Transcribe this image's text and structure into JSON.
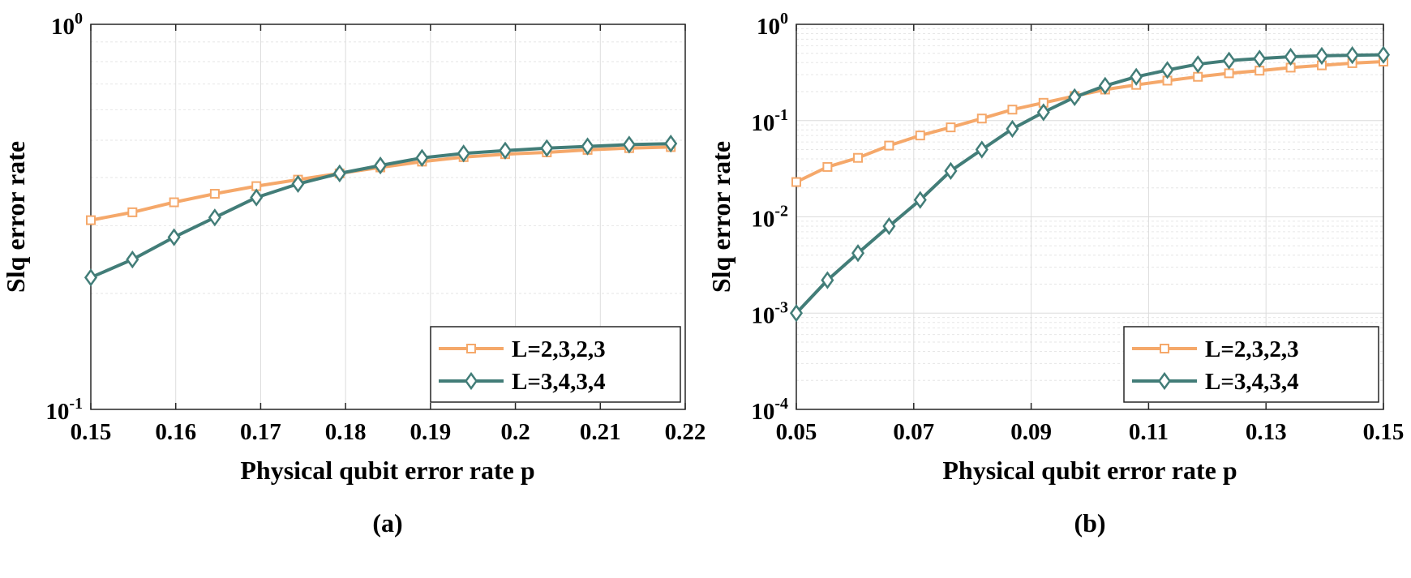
{
  "chart_data": [
    {
      "type": "line",
      "caption": "(a)",
      "xlabel": "Physical qubit error rate p",
      "ylabel": "Slq error rate",
      "xlim": [
        0.15,
        0.22
      ],
      "ylim": [
        0.1,
        1
      ],
      "yscale": "log",
      "x_ticks": [
        0.15,
        0.16,
        0.17,
        0.18,
        0.19,
        0.2,
        0.21,
        0.22
      ],
      "x_tick_labels": [
        "0.15",
        "0.16",
        "0.17",
        "0.18",
        "0.19",
        "0.2",
        "0.21",
        "0.22"
      ],
      "y_ticks": [
        {
          "value": 1,
          "base": "10",
          "exp": "0"
        },
        {
          "value": 0.1,
          "base": "10",
          "exp": "-1"
        }
      ],
      "grid": true,
      "legend_position": "bottom-right",
      "series": [
        {
          "name": "L=2,3,2,3",
          "color": "#f5a86a",
          "marker": "square",
          "x": [
            0.15,
            0.1549,
            0.1598,
            0.1646,
            0.1695,
            0.1744,
            0.1793,
            0.1841,
            0.189,
            0.1939,
            0.1988,
            0.2037,
            0.2085,
            0.2134,
            0.2183
          ],
          "y": [
            0.31,
            0.325,
            0.345,
            0.363,
            0.38,
            0.395,
            0.41,
            0.425,
            0.44,
            0.452,
            0.46,
            0.465,
            0.472,
            0.477,
            0.48
          ]
        },
        {
          "name": "L=3,4,3,4",
          "color": "#427d78",
          "marker": "diamond",
          "x": [
            0.15,
            0.1549,
            0.1598,
            0.1646,
            0.1695,
            0.1744,
            0.1793,
            0.1841,
            0.189,
            0.1939,
            0.1988,
            0.2037,
            0.2085,
            0.2134,
            0.2183
          ],
          "y": [
            0.22,
            0.245,
            0.28,
            0.315,
            0.355,
            0.385,
            0.41,
            0.43,
            0.45,
            0.462,
            0.47,
            0.477,
            0.482,
            0.487,
            0.49
          ]
        }
      ]
    },
    {
      "type": "line",
      "caption": "(b)",
      "xlabel": "Physical qubit error rate p",
      "ylabel": "Slq error rate",
      "xlim": [
        0.05,
        0.15
      ],
      "ylim": [
        0.0001,
        1
      ],
      "yscale": "log",
      "x_ticks": [
        0.05,
        0.07,
        0.09,
        0.11,
        0.13,
        0.15
      ],
      "x_tick_labels": [
        "0.05",
        "0.07",
        "0.09",
        "0.11",
        "0.13",
        "0.15"
      ],
      "y_ticks": [
        {
          "value": 1,
          "base": "10",
          "exp": "0"
        },
        {
          "value": 0.1,
          "base": "10",
          "exp": "-1"
        },
        {
          "value": 0.01,
          "base": "10",
          "exp": "-2"
        },
        {
          "value": 0.001,
          "base": "10",
          "exp": "-3"
        },
        {
          "value": 0.0001,
          "base": "10",
          "exp": "-4"
        }
      ],
      "grid": true,
      "legend_position": "bottom-right",
      "series": [
        {
          "name": "L=2,3,2,3",
          "color": "#f5a86a",
          "marker": "square",
          "x": [
            0.05,
            0.0553,
            0.0605,
            0.0658,
            0.0711,
            0.0763,
            0.0816,
            0.0868,
            0.0921,
            0.0974,
            0.1026,
            0.1079,
            0.1132,
            0.1184,
            0.1237,
            0.1289,
            0.1342,
            0.1395,
            0.1447,
            0.15
          ],
          "y": [
            0.023,
            0.033,
            0.041,
            0.055,
            0.07,
            0.085,
            0.105,
            0.13,
            0.153,
            0.18,
            0.21,
            0.235,
            0.26,
            0.285,
            0.31,
            0.33,
            0.355,
            0.375,
            0.395,
            0.41
          ]
        },
        {
          "name": "L=3,4,3,4",
          "color": "#427d78",
          "marker": "diamond",
          "x": [
            0.05,
            0.0553,
            0.0605,
            0.0658,
            0.0711,
            0.0763,
            0.0816,
            0.0868,
            0.0921,
            0.0974,
            0.1026,
            0.1079,
            0.1132,
            0.1184,
            0.1237,
            0.1289,
            0.1342,
            0.1395,
            0.1447,
            0.15
          ],
          "y": [
            0.001,
            0.0022,
            0.0042,
            0.008,
            0.015,
            0.03,
            0.05,
            0.082,
            0.122,
            0.175,
            0.23,
            0.285,
            0.335,
            0.385,
            0.42,
            0.44,
            0.46,
            0.47,
            0.478,
            0.482
          ]
        }
      ]
    }
  ]
}
